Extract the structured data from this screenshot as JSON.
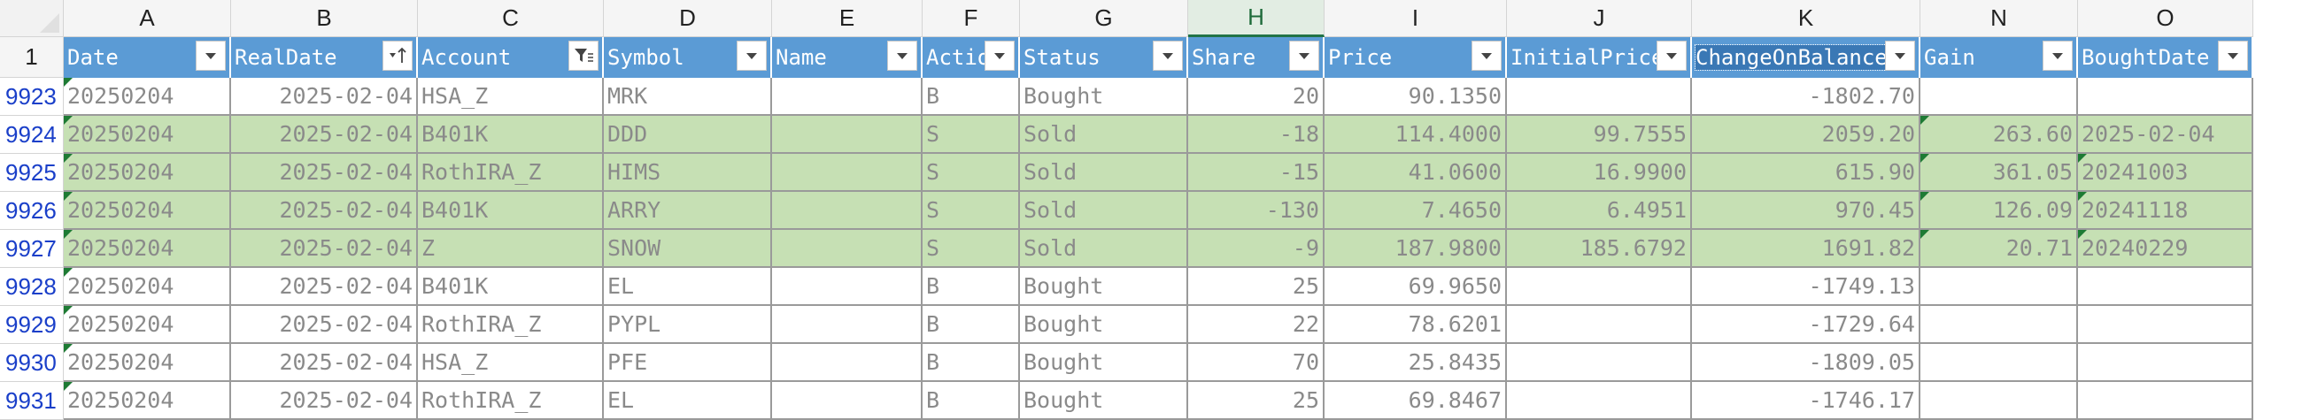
{
  "corner_label": "",
  "columns": [
    "A",
    "B",
    "C",
    "D",
    "E",
    "F",
    "G",
    "H",
    "I",
    "J",
    "K",
    "N",
    "O"
  ],
  "selected_column": "H",
  "header_row_number": "1",
  "headers": [
    "Date",
    "RealDate",
    "Account",
    "Symbol",
    "Name",
    "Action",
    "Status",
    "Share",
    "Price",
    "InitialPrice",
    "ChangeOnBalance",
    "Gain",
    "BoughtDate"
  ],
  "header_filter_icons": [
    "chevron-down-icon",
    "sort-ascending-icon",
    "filter-active-icon",
    "chevron-down-icon",
    "chevron-down-icon",
    "chevron-down-icon",
    "chevron-down-icon",
    "chevron-down-icon",
    "chevron-down-icon",
    "chevron-down-icon",
    "chevron-down-icon",
    "chevron-down-icon",
    "chevron-down-icon"
  ],
  "rows": [
    {
      "num": "9923",
      "sold": false,
      "cells": [
        "20250204",
        "2025-02-04",
        "HSA_Z",
        "MRK",
        "",
        "B",
        "Bought",
        "20",
        "90.1350",
        "",
        "-1802.70",
        "",
        ""
      ]
    },
    {
      "num": "9924",
      "sold": true,
      "cells": [
        "20250204",
        "2025-02-04",
        "B401K",
        "DDD",
        "",
        "S",
        "Sold",
        "-18",
        "114.4000",
        "99.7555",
        "2059.20",
        "263.60",
        "2025-02-04"
      ]
    },
    {
      "num": "9925",
      "sold": true,
      "cells": [
        "20250204",
        "2025-02-04",
        "RothIRA_Z",
        "HIMS",
        "",
        "S",
        "Sold",
        "-15",
        "41.0600",
        "16.9900",
        "615.90",
        "361.05",
        "20241003"
      ]
    },
    {
      "num": "9926",
      "sold": true,
      "cells": [
        "20250204",
        "2025-02-04",
        "B401K",
        "ARRY",
        "",
        "S",
        "Sold",
        "-130",
        "7.4650",
        "6.4951",
        "970.45",
        "126.09",
        "20241118"
      ]
    },
    {
      "num": "9927",
      "sold": true,
      "cells": [
        "20250204",
        "2025-02-04",
        "Z",
        "SNOW",
        "",
        "S",
        "Sold",
        "-9",
        "187.9800",
        "185.6792",
        "1691.82",
        "20.71",
        "20240229"
      ]
    },
    {
      "num": "9928",
      "sold": false,
      "cells": [
        "20250204",
        "2025-02-04",
        "B401K",
        "EL",
        "",
        "B",
        "Bought",
        "25",
        "69.9650",
        "",
        "-1749.13",
        "",
        ""
      ]
    },
    {
      "num": "9929",
      "sold": false,
      "cells": [
        "20250204",
        "2025-02-04",
        "RothIRA_Z",
        "PYPL",
        "",
        "B",
        "Bought",
        "22",
        "78.6201",
        "",
        "-1729.64",
        "",
        ""
      ]
    },
    {
      "num": "9930",
      "sold": false,
      "cells": [
        "20250204",
        "2025-02-04",
        "HSA_Z",
        "PFE",
        "",
        "B",
        "Bought",
        "70",
        "25.8435",
        "",
        "-1809.05",
        "",
        ""
      ]
    },
    {
      "num": "9931",
      "sold": false,
      "cells": [
        "20250204",
        "2025-02-04",
        "RothIRA_Z",
        "EL",
        "",
        "B",
        "Bought",
        "25",
        "69.8467",
        "",
        "-1746.17",
        "",
        ""
      ]
    }
  ],
  "colors": {
    "header_fill": "#5b9bd5",
    "sold_fill": "#c6e0b4",
    "row_number_text": "#1a3fc9",
    "selected_column_accent": "#217346",
    "error_indicator": "#1e7b34"
  }
}
